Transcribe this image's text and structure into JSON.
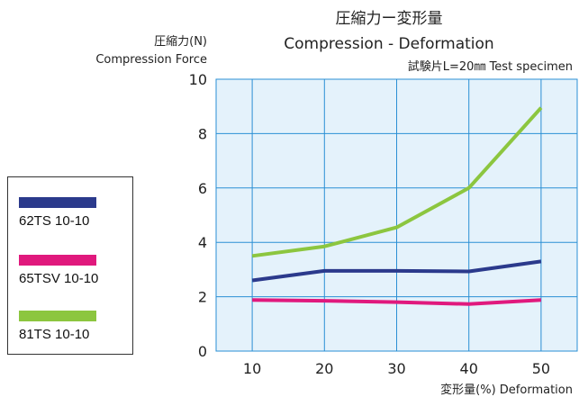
{
  "chart_data": {
    "type": "line",
    "title": "圧縮力ー変形量",
    "subtitle": "Compression - Deformation",
    "note": "試験片L=20㎜ Test specimen",
    "ylabel_jp": "圧縮力(N)",
    "ylabel_en": "Compression Force",
    "xlabel": "変形量(%) Deformation",
    "x": [
      10,
      20,
      30,
      40,
      50
    ],
    "xlim": [
      5,
      55
    ],
    "ylim": [
      0,
      10
    ],
    "xticks": [
      "10",
      "20",
      "30",
      "40",
      "50"
    ],
    "yticks": [
      "0",
      "2",
      "4",
      "6",
      "8",
      "10"
    ],
    "grid": true,
    "legend_position": "left",
    "plot_background": "#e4f2fb",
    "grid_color": "#2a8fd4",
    "series": [
      {
        "name": "62TS 10-10",
        "color": "#2b3a8c",
        "values": [
          2.6,
          2.95,
          2.95,
          2.93,
          3.3
        ]
      },
      {
        "name": "65TSV 10-10",
        "color": "#e0197d",
        "values": [
          1.88,
          1.85,
          1.8,
          1.73,
          1.88
        ]
      },
      {
        "name": "81TS 10-10",
        "color": "#8cc63f",
        "values": [
          3.5,
          3.85,
          4.55,
          6.0,
          8.95
        ]
      }
    ]
  }
}
